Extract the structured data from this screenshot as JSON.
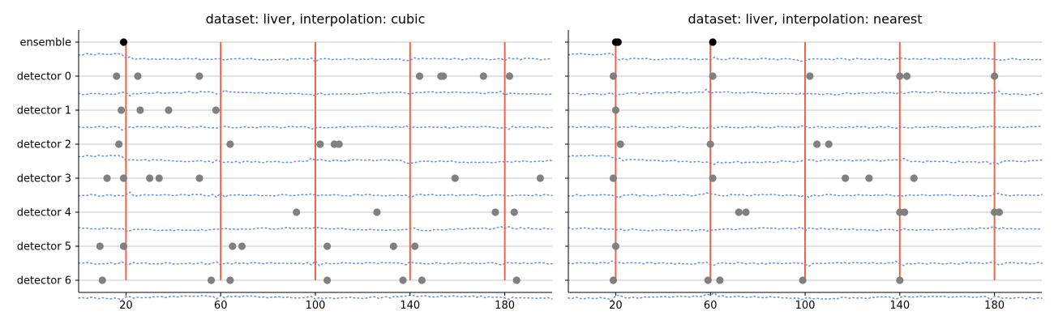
{
  "chart_data": [
    {
      "type": "scatter",
      "title": "dataset: liver, interpolation: cubic",
      "rows": [
        "ensemble",
        "detector 0",
        "detector 1",
        "detector 2",
        "detector 3",
        "detector 4",
        "detector 5",
        "detector 6"
      ],
      "xticks": [
        20,
        60,
        100,
        140,
        180
      ],
      "xlim": [
        0,
        200
      ],
      "changepoints": [
        20,
        60,
        100,
        140,
        180
      ],
      "detections": {
        "ensemble": [
          19
        ],
        "detector 0": [
          16,
          25,
          51,
          144,
          153,
          154,
          171,
          182
        ],
        "detector 1": [
          18,
          26,
          38,
          58
        ],
        "detector 2": [
          17,
          64,
          102,
          108,
          110
        ],
        "detector 3": [
          12,
          19,
          30,
          34,
          51,
          159,
          195
        ],
        "detector 4": [
          92,
          126,
          176,
          184
        ],
        "detector 5": [
          9,
          19,
          65,
          69,
          105,
          133,
          142
        ],
        "detector 6": [
          10,
          56,
          64,
          105,
          137,
          145,
          185
        ]
      },
      "grid": true
    },
    {
      "type": "scatter",
      "title": "dataset: liver, interpolation: nearest",
      "rows": [
        "ensemble",
        "detector 0",
        "detector 1",
        "detector 2",
        "detector 3",
        "detector 4",
        "detector 5",
        "detector 6"
      ],
      "xticks": [
        20,
        60,
        100,
        140,
        180
      ],
      "xlim": [
        0,
        200
      ],
      "changepoints": [
        20,
        60,
        100,
        140,
        180
      ],
      "detections": {
        "ensemble": [
          20,
          21,
          61
        ],
        "detector 0": [
          19,
          61,
          102,
          140,
          143,
          180
        ],
        "detector 1": [
          20
        ],
        "detector 2": [
          22,
          60,
          105,
          110
        ],
        "detector 3": [
          19,
          61,
          117,
          127,
          146
        ],
        "detector 4": [
          72,
          75,
          140,
          142,
          180,
          182
        ],
        "detector 5": [
          20
        ],
        "detector 6": [
          19,
          59,
          64,
          99,
          140
        ]
      },
      "grid": true
    }
  ]
}
